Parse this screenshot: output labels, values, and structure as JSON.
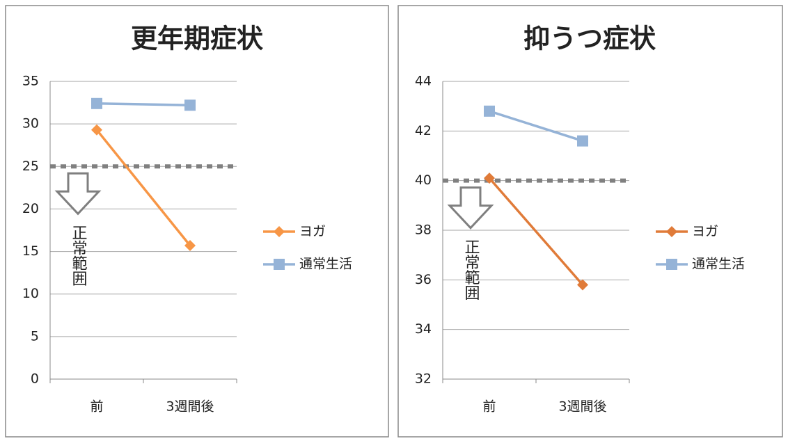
{
  "chart_data": [
    {
      "type": "line",
      "title": "更年期症状",
      "categories": [
        "前",
        "3週間後"
      ],
      "series": [
        {
          "name": "ヨガ",
          "color": "#f79646",
          "marker": "diamond",
          "values": [
            29.3,
            15.7
          ]
        },
        {
          "name": "通常生活",
          "color": "#95b3d7",
          "marker": "square",
          "values": [
            32.4,
            32.2
          ]
        }
      ],
      "ylim": [
        0,
        35
      ],
      "yticks": [
        0,
        5,
        10,
        15,
        20,
        25,
        30,
        35
      ],
      "grid": true,
      "reference_line": {
        "value": 25,
        "label": "正常範囲"
      }
    },
    {
      "type": "line",
      "title": "抑うつ症状",
      "categories": [
        "前",
        "3週間後"
      ],
      "series": [
        {
          "name": "ヨガ",
          "color": "#e07b39",
          "marker": "diamond",
          "values": [
            40.1,
            35.8
          ]
        },
        {
          "name": "通常生活",
          "color": "#95b3d7",
          "marker": "square",
          "values": [
            42.8,
            41.6
          ]
        }
      ],
      "ylim": [
        32,
        44
      ],
      "yticks": [
        32,
        34,
        36,
        38,
        40,
        42,
        44
      ],
      "grid": true,
      "reference_line": {
        "value": 40,
        "label": "正常範囲"
      }
    }
  ]
}
